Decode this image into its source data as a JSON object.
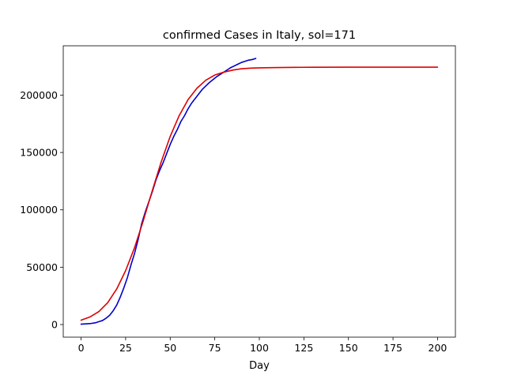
{
  "chart_data": {
    "type": "line",
    "title": "confirmed Cases in Italy, sol=171",
    "xlabel": "Day",
    "ylabel": "",
    "xlim": [
      -10,
      210
    ],
    "ylim": [
      -11000,
      243000
    ],
    "xticks": [
      0,
      25,
      50,
      75,
      100,
      125,
      150,
      175,
      200
    ],
    "yticks": [
      0,
      50000,
      100000,
      150000,
      200000
    ],
    "grid": false,
    "legend": "none",
    "series": [
      {
        "color": "#0000cc",
        "x": [
          0,
          5,
          8,
          10,
          12,
          14,
          16,
          18,
          20,
          22,
          24,
          26,
          28,
          30,
          32,
          34,
          36,
          38,
          40,
          42,
          44,
          46,
          48,
          50,
          52,
          54,
          56,
          58,
          60,
          62,
          64,
          66,
          68,
          70,
          72,
          74,
          76,
          78,
          80,
          82,
          84,
          86,
          88,
          90,
          92,
          94,
          96,
          98
        ],
        "y": [
          300,
          800,
          1500,
          2500,
          3500,
          5500,
          8000,
          12000,
          17000,
          24000,
          32000,
          41000,
          52000,
          62000,
          74000,
          88000,
          98000,
          107000,
          116000,
          126000,
          134000,
          141000,
          149000,
          157000,
          164000,
          170000,
          177000,
          182000,
          188000,
          193000,
          197000,
          201000,
          205000,
          208000,
          211000,
          213500,
          216000,
          218000,
          220000,
          222000,
          224000,
          225500,
          227000,
          228500,
          229500,
          230500,
          231000,
          232000
        ]
      },
      {
        "color": "#dd0000",
        "x": [
          0,
          5,
          10,
          15,
          20,
          25,
          30,
          35,
          40,
          45,
          50,
          55,
          60,
          65,
          70,
          75,
          80,
          85,
          90,
          95,
          100,
          110,
          120,
          130,
          150,
          175,
          200
        ],
        "y": [
          3800,
          6600,
          11300,
          19200,
          31000,
          47000,
          67000,
          91000,
          117000,
          142000,
          164000,
          182000,
          196000,
          206000,
          213000,
          217500,
          220000,
          221800,
          223000,
          223500,
          223800,
          224000,
          224200,
          224300,
          224400,
          224400,
          224400
        ]
      }
    ]
  }
}
